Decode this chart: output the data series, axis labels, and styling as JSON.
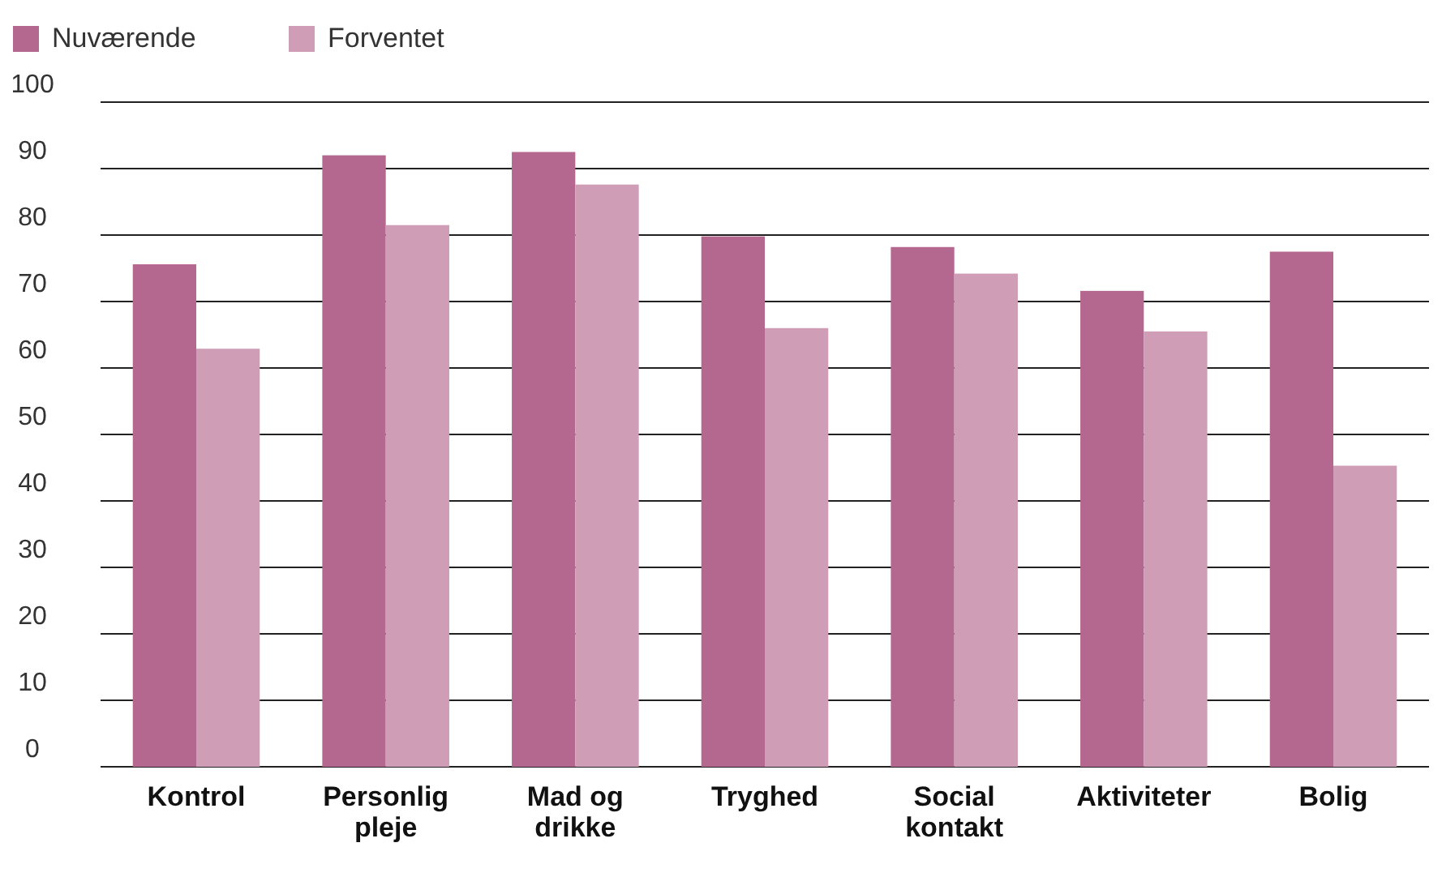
{
  "chart_data": {
    "type": "bar",
    "categories": [
      "Kontrol",
      "Personlig pleje",
      "Mad og drikke",
      "Tryghed",
      "Social kontakt",
      "Aktiviteter",
      "Bolig"
    ],
    "series": [
      {
        "name": "Nuværende",
        "color": "#b5688f",
        "values": [
          75.6,
          92,
          92.5,
          79.8,
          78.2,
          71.6,
          77.5
        ]
      },
      {
        "name": "Forventet",
        "color": "#d09db6",
        "values": [
          62.9,
          81.5,
          87.6,
          66,
          74.2,
          65.5,
          45.3
        ]
      }
    ],
    "ylim": [
      0,
      100
    ],
    "yticks": [
      0,
      10,
      20,
      30,
      40,
      50,
      60,
      70,
      80,
      90,
      100
    ],
    "grid": "y",
    "legend": "top left"
  }
}
